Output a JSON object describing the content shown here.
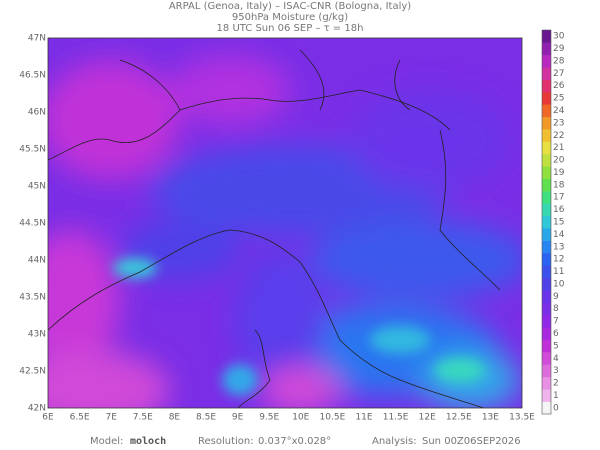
{
  "header": {
    "lines": [
      "ARPAL (Genoa, Italy)  –  ISAC-CNR (Bologna, Italy)",
      "950hPa Moisture (g/kg)",
      "18 UTC Sun 06 SEP  –  τ = 18h"
    ]
  },
  "map": {
    "lon_labels": [
      "6E",
      "6.5E",
      "7E",
      "7.5E",
      "8E",
      "8.5E",
      "9E",
      "9.5E",
      "10E",
      "10.5E",
      "11E",
      "11.5E",
      "12E",
      "12.5E",
      "13E",
      "13.5E"
    ],
    "lat_labels": [
      "47N",
      "46.5N",
      "46N",
      "45.5N",
      "45N",
      "44.5N",
      "44N",
      "43.5N",
      "43N",
      "42.5N",
      "42N"
    ]
  },
  "colorbar": {
    "labels": [
      0,
      1,
      2,
      3,
      4,
      5,
      6,
      7,
      8,
      9,
      10,
      11,
      12,
      13,
      14,
      15,
      16,
      17,
      18,
      19,
      20,
      21,
      22,
      23,
      24,
      25,
      26,
      27,
      28,
      29,
      30
    ]
  },
  "footer": {
    "model_label": "Model:",
    "model": "moloch",
    "resolution_label": "Resolution:",
    "resolution": "0.037°x0.028°",
    "analysis_label": "Analysis:",
    "analysis": "Sun 00Z06SEP2026"
  }
}
